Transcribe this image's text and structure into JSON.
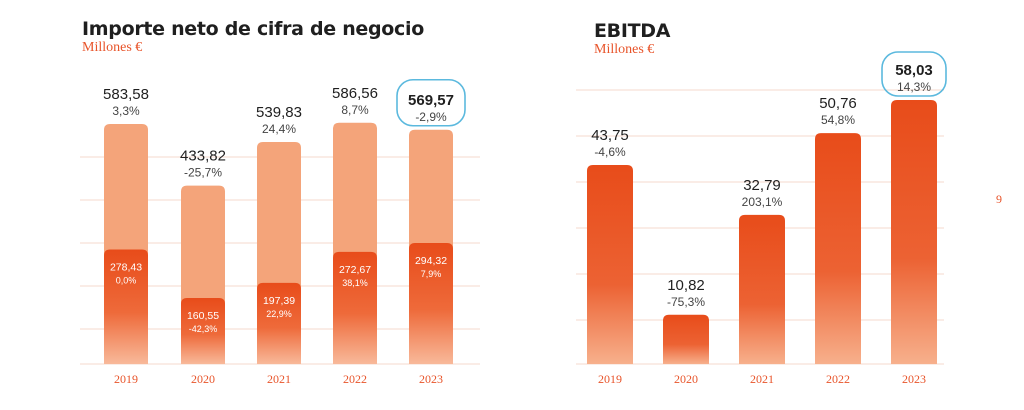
{
  "page_number": "9",
  "chart_data": [
    {
      "type": "bar",
      "title": "Importe neto de cifra de negocio",
      "subtitle": "Millones €",
      "categories": [
        "2019",
        "2020",
        "2021",
        "2022",
        "2023"
      ],
      "series": [
        {
          "values": [
            583.58,
            433.82,
            539.83,
            586.56,
            569.57
          ],
          "value_labels": [
            "583,58",
            "433,82",
            "539,83",
            "586,56",
            "569,57"
          ],
          "change_labels": [
            "3,3%",
            "-25,7%",
            "24,4%",
            "8,7%",
            "-2,9%"
          ],
          "color": "#f4a47a"
        },
        {
          "values": [
            278.43,
            160.55,
            197.39,
            272.67,
            294.32
          ],
          "value_labels": [
            "278,43",
            "160,55",
            "197,39",
            "272,67",
            "294,32"
          ],
          "change_labels": [
            "0,0%",
            "-42,3%",
            "22,9%",
            "38,1%",
            "7,9%"
          ],
          "color": "#e8521f"
        }
      ],
      "ylim": [
        0,
        650
      ],
      "grid": true,
      "highlight_category": "2023"
    },
    {
      "type": "bar",
      "title": "EBITDA",
      "subtitle": "Millones €",
      "categories": [
        "2019",
        "2020",
        "2021",
        "2022",
        "2023"
      ],
      "series": [
        {
          "values": [
            43.75,
            10.82,
            32.79,
            50.76,
            58.03
          ],
          "value_labels": [
            "43,75",
            "10,82",
            "32,79",
            "50,76",
            "58,03"
          ],
          "change_labels": [
            "-4,6%",
            "-75,3%",
            "203,1%",
            "54,8%",
            "14,3%"
          ],
          "color": "#e8521f"
        }
      ],
      "ylim": [
        0,
        64
      ],
      "grid": true,
      "highlight_category": "2023"
    }
  ],
  "colors": {
    "accent": "#e8542a",
    "light_bar": "#f4a47a",
    "dark_bar": "#e8521f",
    "gradient_bottom": "#f8b99a",
    "highlight_outline": "#5bb9de",
    "grid": "#f6d9cc"
  }
}
